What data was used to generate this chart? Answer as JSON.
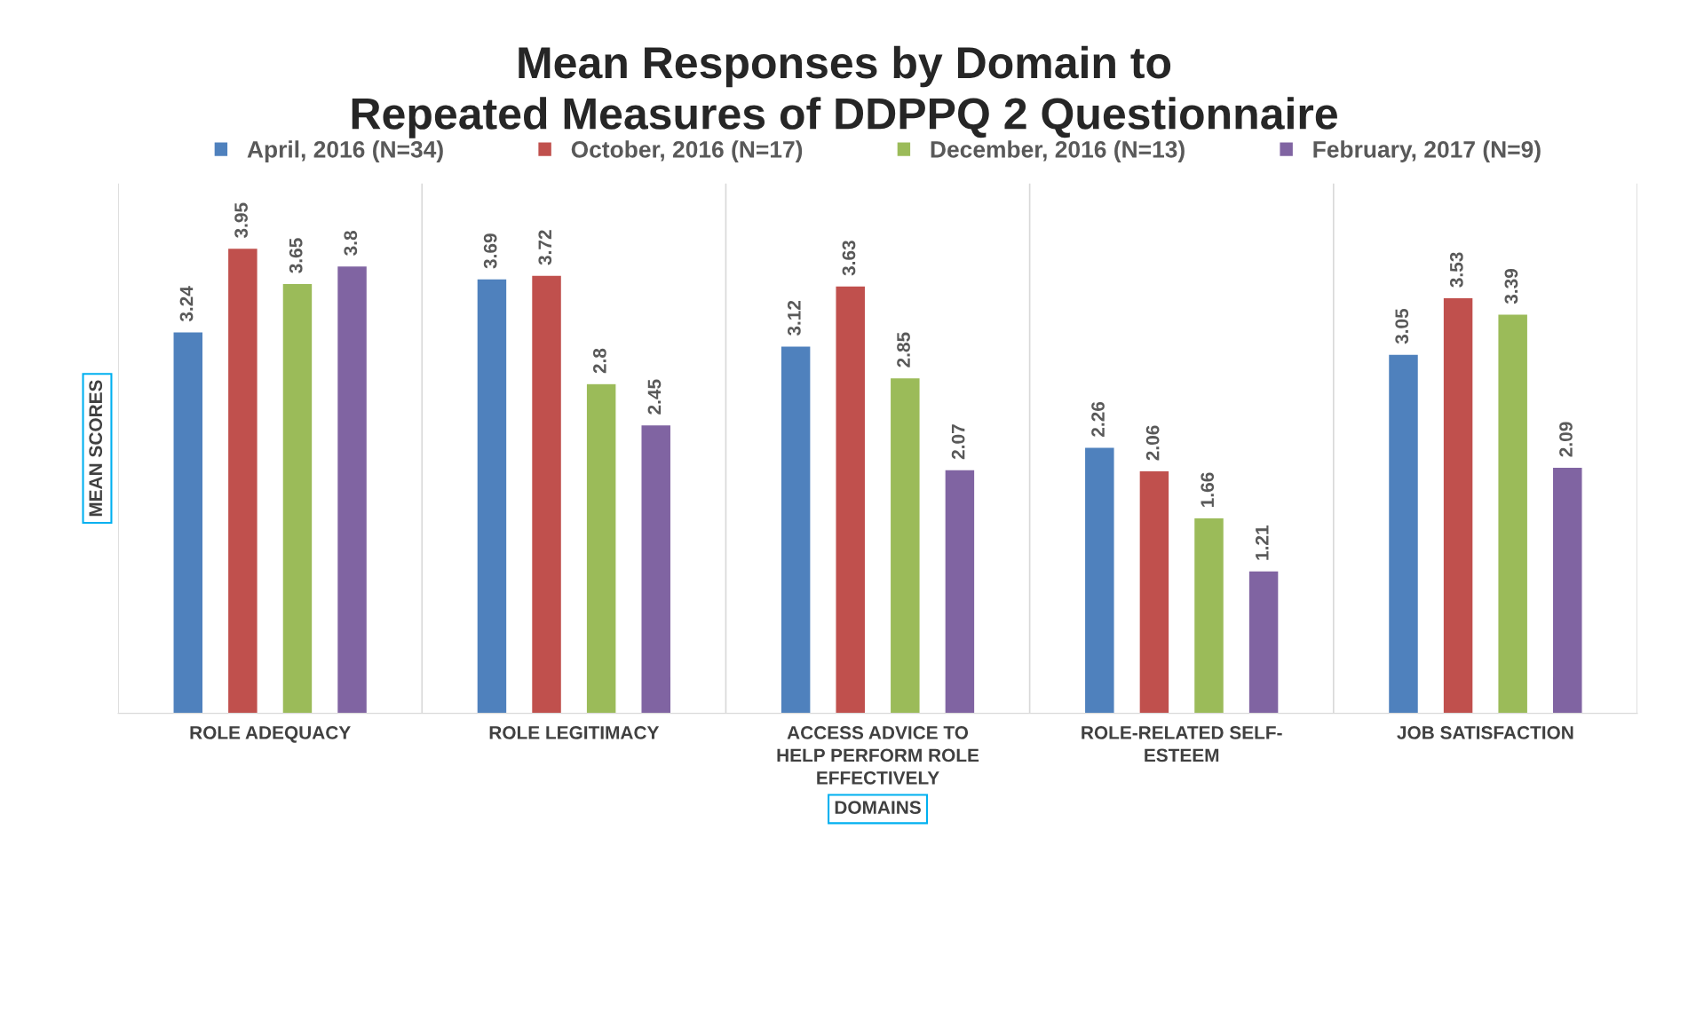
{
  "chart_data": {
    "type": "bar",
    "title": "Mean Responses by Domain to\nRepeated Measures of DDPPQ 2 Questionnaire",
    "xlabel": "DOMAINS",
    "ylabel": "MEAN SCORES",
    "categories": [
      "ROLE ADEQUACY",
      "ROLE LEGITIMACY",
      "ACCESS ADVICE TO\nHELP PERFORM ROLE\nEFFECTIVELY",
      "ROLE-RELATED SELF-\nESTEEM",
      "JOB SATISFACTION"
    ],
    "series": [
      {
        "name": "April, 2016 (N=34)",
        "color": "#4f81bd",
        "values": [
          3.24,
          3.69,
          3.12,
          2.26,
          3.05
        ]
      },
      {
        "name": "October, 2016 (N=17)",
        "color": "#c0504d",
        "values": [
          3.95,
          3.72,
          3.63,
          2.06,
          3.53
        ]
      },
      {
        "name": "December, 2016 (N=13)",
        "color": "#9bbb59",
        "values": [
          3.65,
          2.8,
          2.85,
          1.66,
          3.39
        ]
      },
      {
        "name": "February, 2017 (N=9)",
        "color": "#8064a2",
        "values": [
          3.8,
          2.45,
          2.07,
          1.21,
          2.09
        ]
      }
    ],
    "ylim": [
      0,
      4.5
    ],
    "data_labels": true,
    "grid": "x",
    "legend": "top",
    "tick_labels": "x"
  }
}
